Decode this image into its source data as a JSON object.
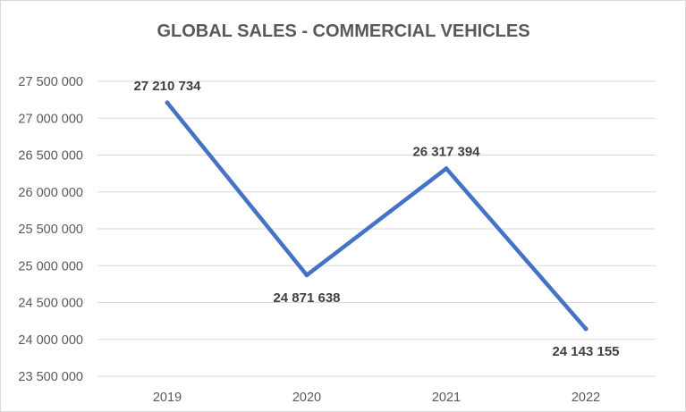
{
  "chart_data": {
    "type": "line",
    "title": "GLOBAL SALES - COMMERCIAL VEHICLES",
    "xlabel": "",
    "ylabel": "",
    "categories": [
      "2019",
      "2020",
      "2021",
      "2022"
    ],
    "series": [
      {
        "values": [
          27210734,
          24871638,
          26317394,
          24143155
        ],
        "labels": [
          "27 210 734",
          "24 871 638",
          "26 317 394",
          "24 143 155"
        ]
      }
    ],
    "ylim": [
      23500000,
      27500000
    ],
    "y_ticks": [
      23500000,
      24000000,
      24500000,
      25000000,
      25500000,
      26000000,
      26500000,
      27000000,
      27500000
    ],
    "y_tick_labels": [
      "23 500 000",
      "24 000 000",
      "24 500 000",
      "25 000 000",
      "25 500 000",
      "26 000 000",
      "26 500 000",
      "27 000 000",
      "27 500 000"
    ],
    "grid": true,
    "legend": "none",
    "line_color": "#4472c4",
    "grid_color": "#d9d9d9"
  }
}
